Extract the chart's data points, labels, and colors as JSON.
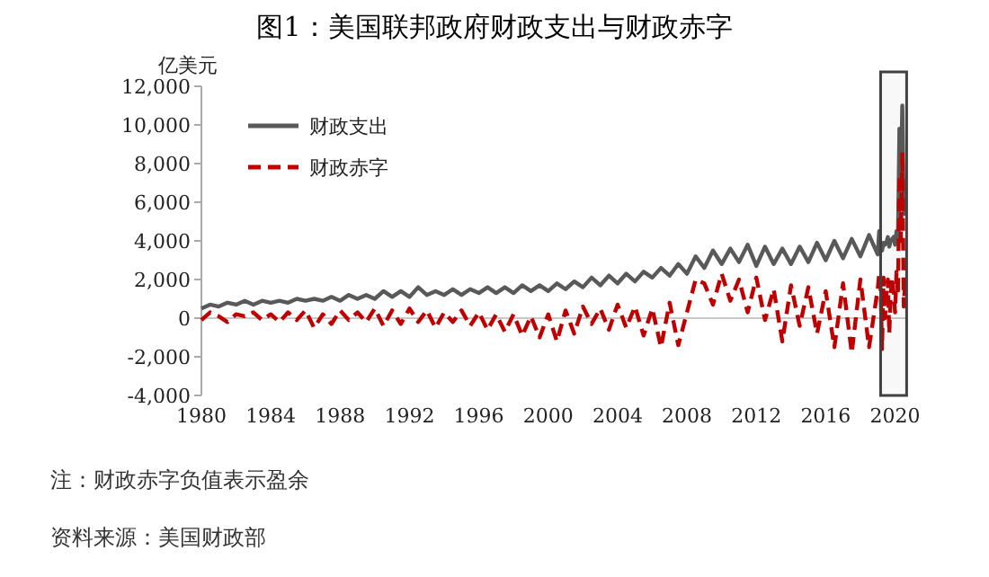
{
  "chart_data": {
    "type": "line",
    "title": "图1：美国联邦政府财政支出与财政赤字",
    "ylabel": "亿美元",
    "x": [
      "1980-01",
      "1980-07",
      "1981-01",
      "1981-07",
      "1982-01",
      "1982-07",
      "1983-01",
      "1983-07",
      "1984-01",
      "1984-07",
      "1985-01",
      "1985-07",
      "1986-01",
      "1986-07",
      "1987-01",
      "1987-07",
      "1988-01",
      "1988-07",
      "1989-01",
      "1989-07",
      "1990-01",
      "1990-07",
      "1991-01",
      "1991-07",
      "1992-01",
      "1992-07",
      "1993-01",
      "1993-07",
      "1994-01",
      "1994-07",
      "1995-01",
      "1995-07",
      "1996-01",
      "1996-07",
      "1997-01",
      "1997-07",
      "1998-01",
      "1998-07",
      "1999-01",
      "1999-07",
      "2000-01",
      "2000-07",
      "2001-01",
      "2001-07",
      "2002-01",
      "2002-07",
      "2003-01",
      "2003-07",
      "2004-01",
      "2004-07",
      "2005-01",
      "2005-07",
      "2006-01",
      "2006-07",
      "2007-01",
      "2007-07",
      "2008-01",
      "2008-07",
      "2009-01",
      "2009-07",
      "2010-01",
      "2010-07",
      "2011-01",
      "2011-07",
      "2012-01",
      "2012-07",
      "2013-01",
      "2013-07",
      "2014-01",
      "2014-07",
      "2015-01",
      "2015-07",
      "2016-01",
      "2016-07",
      "2017-01",
      "2017-07",
      "2018-01",
      "2018-07",
      "2019-01",
      "2019-02",
      "2019-03",
      "2019-04",
      "2019-05",
      "2019-06",
      "2019-07",
      "2019-08",
      "2019-09",
      "2019-10",
      "2019-11",
      "2019-12",
      "2020-01",
      "2020-02",
      "2020-03",
      "2020-04",
      "2020-05",
      "2020-06",
      "2020-07",
      "2020-08"
    ],
    "series": [
      {
        "name": "财政支出",
        "color": "#595959",
        "line_style": "solid",
        "values": [
          500,
          700,
          600,
          800,
          700,
          900,
          700,
          900,
          800,
          900,
          800,
          1000,
          900,
          1000,
          900,
          1100,
          900,
          1200,
          1000,
          1200,
          1000,
          1400,
          1100,
          1400,
          1100,
          1600,
          1200,
          1400,
          1200,
          1500,
          1200,
          1500,
          1300,
          1600,
          1300,
          1600,
          1300,
          1700,
          1400,
          1700,
          1400,
          1800,
          1500,
          1900,
          1600,
          2100,
          1700,
          2200,
          1800,
          2300,
          1900,
          2400,
          2100,
          2600,
          2200,
          2800,
          2300,
          3200,
          2600,
          3500,
          2800,
          3600,
          2900,
          3800,
          2700,
          3700,
          2800,
          3600,
          2800,
          3700,
          2900,
          3900,
          3000,
          4000,
          3100,
          4100,
          3200,
          4300,
          3300,
          4500,
          3700,
          3500,
          3900,
          3800,
          3900,
          4200,
          3700,
          4000,
          4100,
          4200,
          3800,
          4500,
          4000,
          9800,
          6900,
          11000,
          5600,
          5300
        ]
      },
      {
        "name": "财政赤字",
        "color": "#c00000",
        "line_style": "dashed",
        "values": [
          -100,
          300,
          100,
          -200,
          200,
          100,
          300,
          -100,
          200,
          -200,
          300,
          -100,
          400,
          -500,
          200,
          -300,
          400,
          -100,
          300,
          -200,
          500,
          -400,
          400,
          -300,
          500,
          -200,
          400,
          -500,
          300,
          -200,
          400,
          -400,
          300,
          -600,
          200,
          -700,
          200,
          -900,
          100,
          -1000,
          200,
          -1200,
          400,
          -800,
          600,
          -300,
          500,
          -600,
          700,
          -500,
          600,
          -900,
          500,
          -1500,
          800,
          -1400,
          300,
          2000,
          1800,
          700,
          2300,
          900,
          2000,
          300,
          2100,
          -100,
          1500,
          -1200,
          1700,
          -400,
          1600,
          -800,
          1400,
          -1500,
          1800,
          -1800,
          2000,
          -1500,
          1500,
          2300,
          1500,
          -1600,
          2100,
          0,
          1200,
          2000,
          -800,
          1300,
          2100,
          1300,
          300,
          2400,
          1200,
          7400,
          4000,
          8600,
          600,
          2000
        ]
      }
    ],
    "xlim": [
      "1980-01",
      "2020-10"
    ],
    "xticks": [
      "1980",
      "1984",
      "1988",
      "1992",
      "1996",
      "2000",
      "2004",
      "2008",
      "2012",
      "2016",
      "2020"
    ],
    "ylim": [
      -4000,
      12000
    ],
    "yticks": [
      {
        "value": -4000,
        "label": "-4,000"
      },
      {
        "value": -2000,
        "label": "-2,000"
      },
      0,
      {
        "value": 2000,
        "label": "2,000"
      },
      {
        "value": 4000,
        "label": "4,000"
      },
      {
        "value": 6000,
        "label": "6,000"
      },
      {
        "value": 8000,
        "label": "8,000"
      },
      {
        "value": 10000,
        "label": "10,000"
      },
      {
        "value": 12000,
        "label": "12,000"
      }
    ],
    "ref_lines": [
      {
        "axis": "y",
        "value": 0,
        "color": "#c8c8c8"
      }
    ],
    "bands": [
      {
        "axis": "x",
        "from": "2019-03",
        "to": "2020-09",
        "color": "#404040"
      }
    ],
    "legend": "top left",
    "marker": "none",
    "annotations": [
      "注：财政赤字负值表示盈余",
      "资料来源：美国财政部"
    ]
  }
}
